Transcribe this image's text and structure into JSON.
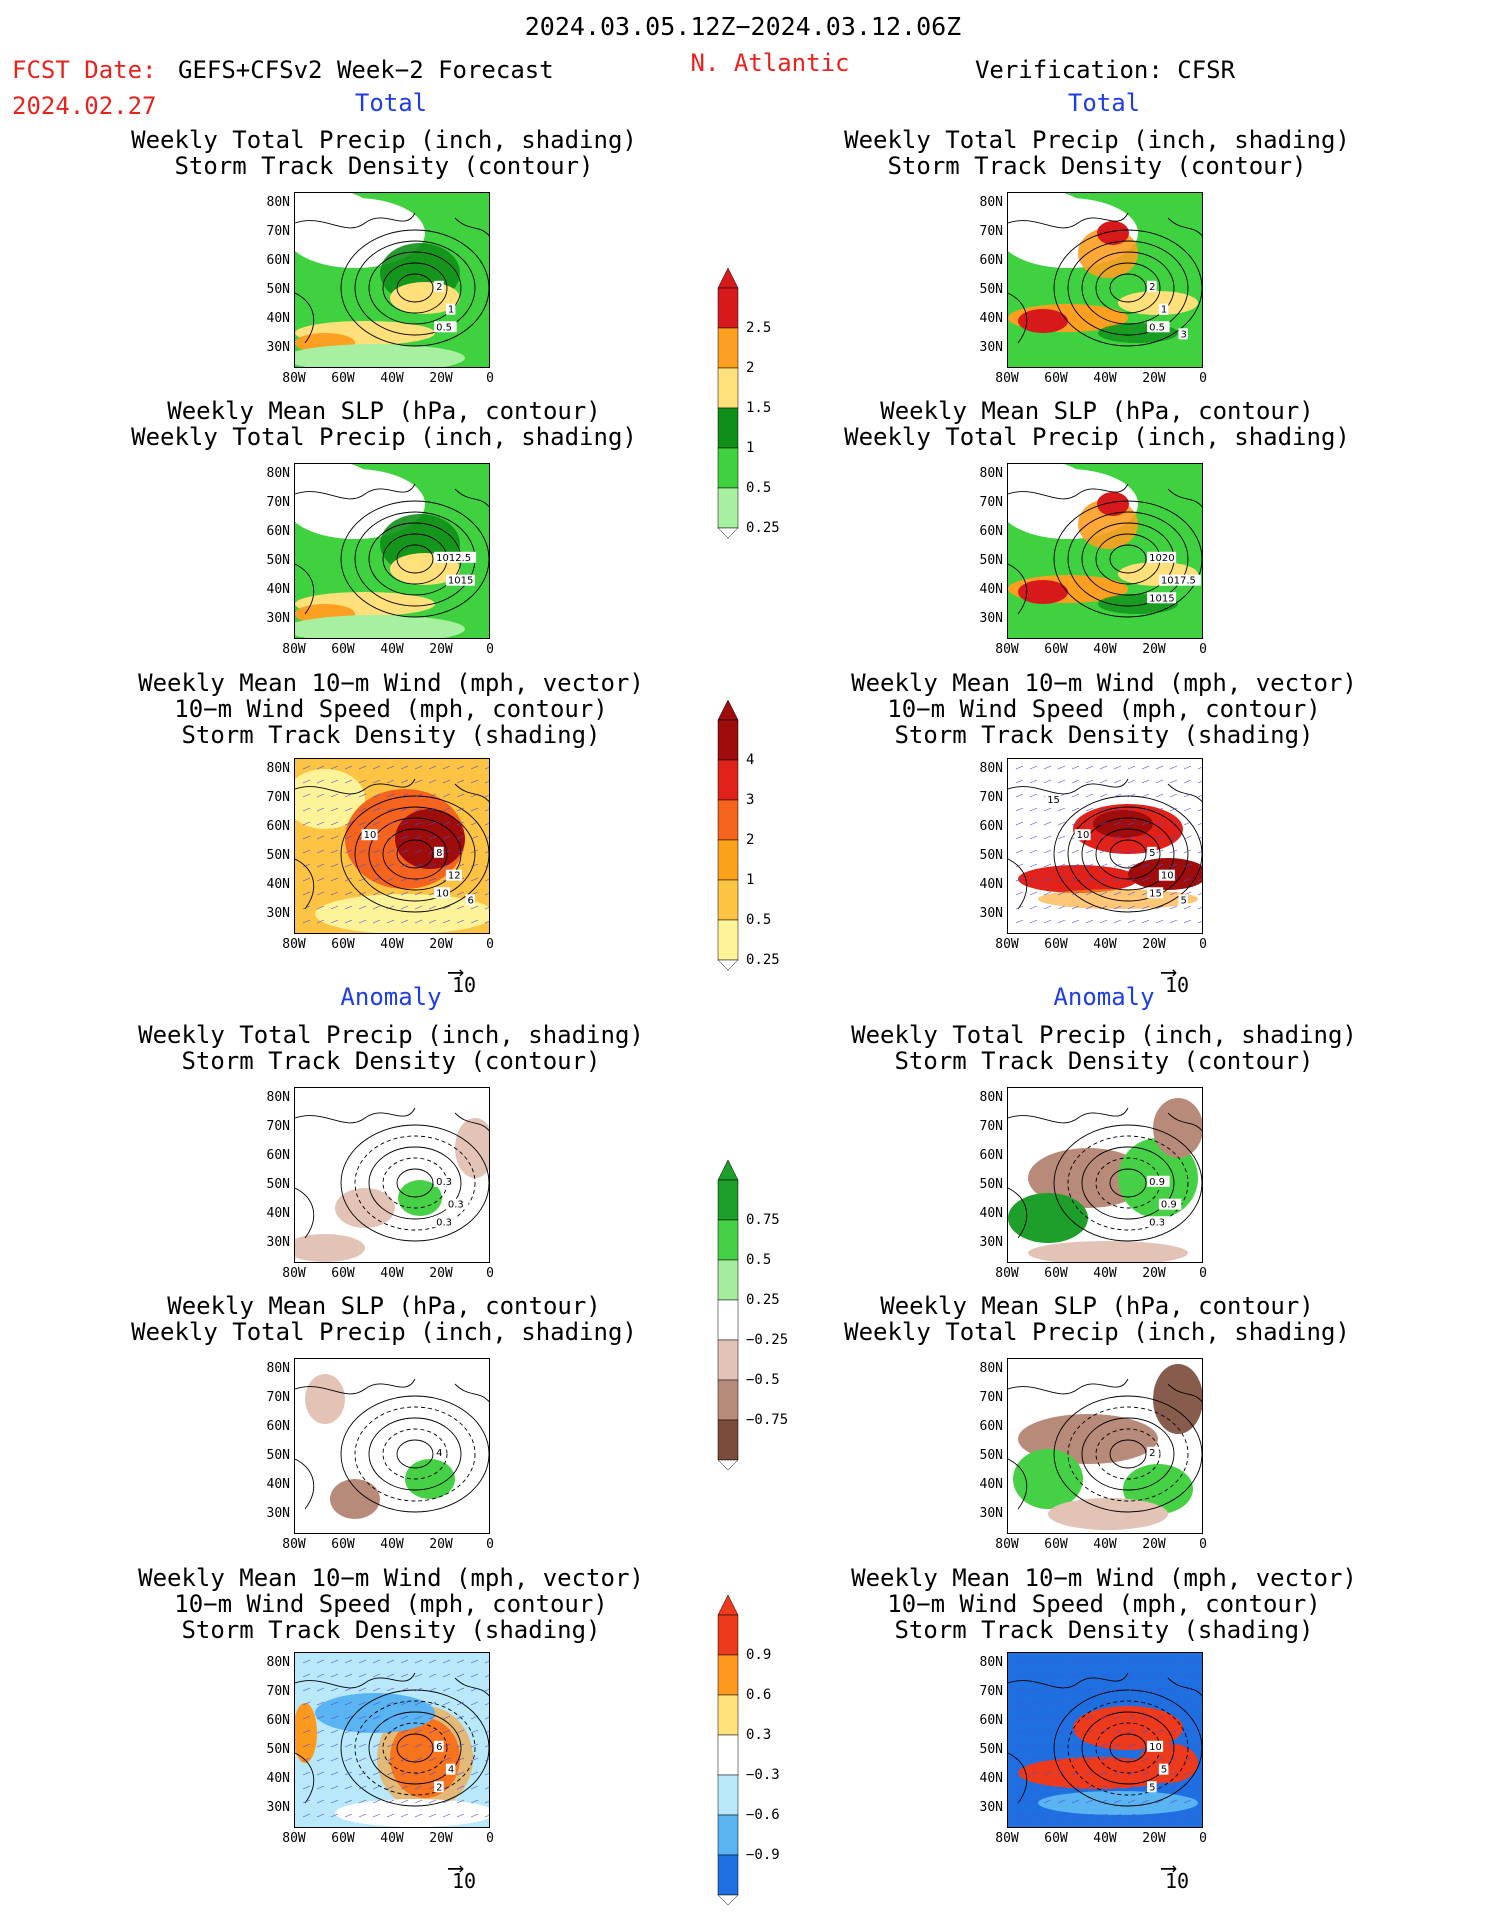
{
  "header": {
    "date_range": "2024.03.05.12Z−2024.03.12.06Z",
    "fcst_label": "FCST Date:",
    "fcst_date": "2024.02.27",
    "model": "GEFS+CFSv2 Week−2 Forecast",
    "region": "N. Atlantic",
    "verification": "Verification: CFSR"
  },
  "sections": {
    "total_left": "Total",
    "total_right": "Total",
    "anomaly_left": "Anomaly",
    "anomaly_right": "Anomaly"
  },
  "panel_titles": {
    "precip_storm": "Weekly Total Precip (inch, shading)\nStorm Track Density (contour)",
    "slp_precip": "Weekly Mean SLP (hPa, contour)\nWeekly Total Precip (inch, shading)",
    "wind": "Weekly Mean 10−m Wind (mph, vector)\n10−m Wind Speed (mph, contour)\nStorm Track Density (shading)"
  },
  "axes": {
    "lat_ticks": [
      "80N",
      "70N",
      "60N",
      "50N",
      "40N",
      "30N"
    ],
    "lon_ticks": [
      "80W",
      "60W",
      "40W",
      "20W",
      "0"
    ]
  },
  "vector_ref": "10",
  "colorbars": {
    "precip_total": {
      "labels": [
        "2.5",
        "2",
        "1.5",
        "1",
        "0.5",
        "0.25"
      ],
      "colors": [
        "#d7191c",
        "#fd9f21",
        "#ffe07a",
        "#0f8f1a",
        "#3fd13f",
        "#a6f0a0"
      ]
    },
    "storm_total": {
      "labels": [
        "4",
        "3",
        "2",
        "1",
        "0.5",
        "0.25"
      ],
      "colors": [
        "#9e0c0c",
        "#e0221a",
        "#f5641e",
        "#fba21d",
        "#fdc444",
        "#fff39a"
      ]
    },
    "precip_anom": {
      "labels": [
        "0.75",
        "0.5",
        "0.25",
        "−0.25",
        "−0.5",
        "−0.75"
      ],
      "colors": [
        "#1e9e2a",
        "#46d046",
        "#a4ec9c",
        "#ffffff",
        "#e2c3b6",
        "#b88a7a",
        "#7a4a3a"
      ]
    },
    "storm_anom": {
      "labels": [
        "0.9",
        "0.6",
        "0.3",
        "−0.3",
        "−0.6",
        "−0.9"
      ],
      "colors": [
        "#ee3a1c",
        "#fd9a1e",
        "#ffe27a",
        "#ffffff",
        "#b8e8fa",
        "#5ab4f2",
        "#1f6fe0"
      ]
    }
  },
  "map_labels": {
    "L1": [
      "2",
      "1",
      "0.5"
    ],
    "R1": [
      "2",
      "1",
      "0.5",
      "3"
    ],
    "L2": [
      "1012.5",
      "1015"
    ],
    "R2": [
      "1020",
      "1017.5",
      "1015"
    ],
    "L3": [
      "8",
      "12",
      "10",
      "6",
      "10"
    ],
    "R3": [
      "5",
      "10",
      "15",
      "5",
      "10",
      "15"
    ],
    "L4": [
      "0.3",
      "0.3",
      "0.3"
    ],
    "R4": [
      "0.9",
      "0.9",
      "0.3"
    ],
    "L5": [
      "4"
    ],
    "R5": [
      "2"
    ],
    "L6": [
      "6",
      "4",
      "2"
    ],
    "R6": [
      "10",
      "5",
      "5"
    ]
  }
}
